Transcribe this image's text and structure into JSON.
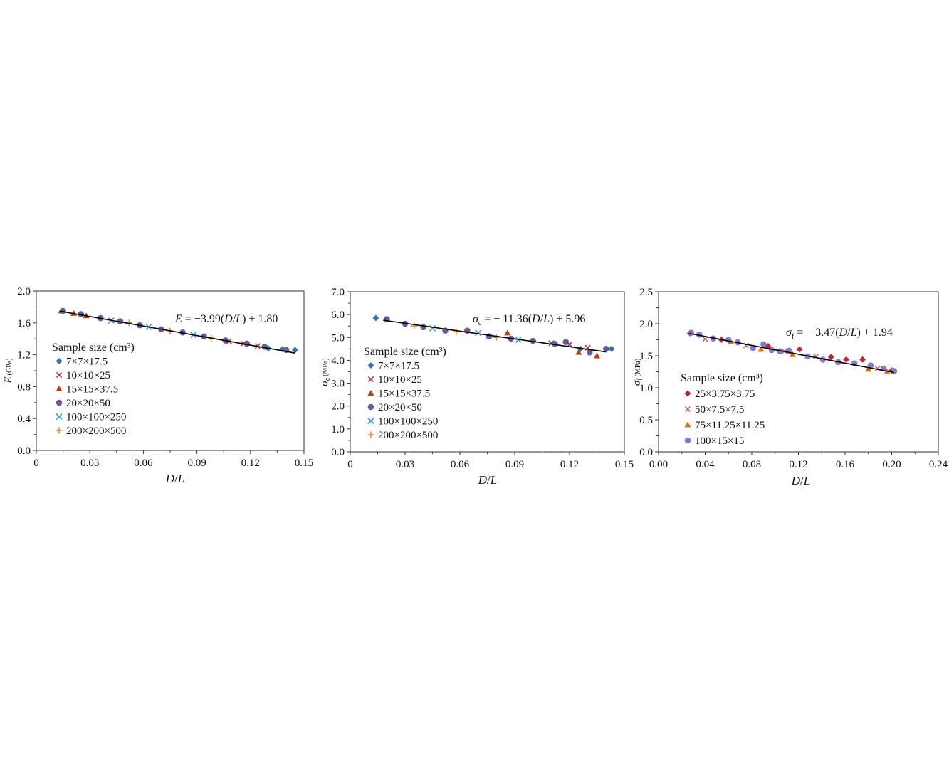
{
  "chart_data": [
    {
      "type": "scatter",
      "x_axis": {
        "label_italic": "D",
        "label_sep": "/",
        "label_italic2": "L",
        "ticks": [
          "0",
          "0.03",
          "0.06",
          "0.09",
          "0.12",
          "0.15"
        ],
        "lim": [
          0,
          0.15
        ]
      },
      "y_axis": {
        "label_main": "E",
        "label_sub": "",
        "label_unit": "(GPa)",
        "ticks": [
          "0.0",
          "0.4",
          "0.8",
          "1.2",
          "1.6",
          "2.0"
        ],
        "lim": [
          0,
          2.0
        ]
      },
      "equation": {
        "lhs": "E",
        "lhs_sub": "",
        "text": " = −3.99(",
        "d": "D",
        "sep": "/",
        "l": "L",
        "tail": ") + 1.80"
      },
      "fit": {
        "slope": -3.99,
        "intercept": 1.8,
        "x_range": [
          0.013,
          0.145
        ]
      },
      "legend_title": "Sample size (cm³)",
      "legend_position": "left",
      "series": [
        {
          "name": "7×7×17.5",
          "marker": "diamond",
          "color": "#3d6fa7",
          "points": [
            [
              0.145,
              1.26
            ],
            [
              0.138,
              1.27
            ],
            [
              0.13,
              1.28
            ]
          ]
        },
        {
          "name": "10×10×25",
          "marker": "x",
          "color": "#a33a3a",
          "points": [
            [
              0.124,
              1.31
            ],
            [
              0.116,
              1.34
            ],
            [
              0.108,
              1.37
            ]
          ]
        },
        {
          "name": "15×15×37.5",
          "marker": "triangle",
          "color": "#a34a14",
          "points": [
            [
              0.014,
              1.75
            ],
            [
              0.021,
              1.72
            ],
            [
              0.028,
              1.69
            ]
          ]
        },
        {
          "name": "20×20×50",
          "marker": "circle",
          "color": "#6b5b95",
          "points": [
            [
              0.015,
              1.75
            ],
            [
              0.025,
              1.71
            ],
            [
              0.036,
              1.66
            ],
            [
              0.047,
              1.62
            ],
            [
              0.058,
              1.57
            ],
            [
              0.07,
              1.52
            ],
            [
              0.082,
              1.48
            ],
            [
              0.094,
              1.43
            ],
            [
              0.106,
              1.38
            ],
            [
              0.118,
              1.34
            ],
            [
              0.128,
              1.3
            ],
            [
              0.14,
              1.26
            ]
          ]
        },
        {
          "name": "100×100×250",
          "marker": "cross",
          "color": "#3aa0c4",
          "points": [
            [
              0.042,
              1.63
            ],
            [
              0.063,
              1.55
            ],
            [
              0.088,
              1.45
            ]
          ]
        },
        {
          "name": "200×200×500",
          "marker": "plus",
          "color": "#e08a3a",
          "points": [
            [
              0.052,
              1.6
            ],
            [
              0.075,
              1.5
            ],
            [
              0.098,
              1.41
            ]
          ]
        }
      ]
    },
    {
      "type": "scatter",
      "x_axis": {
        "label_italic": "D",
        "label_sep": "/",
        "label_italic2": "L",
        "ticks": [
          "0",
          "0.03",
          "0.06",
          "0.09",
          "0.12",
          "0.15"
        ],
        "lim": [
          0,
          0.15
        ]
      },
      "y_axis": {
        "label_main": "σ",
        "label_sub": "c",
        "label_unit": "(MPa)",
        "ticks": [
          "0.0",
          "1.0",
          "2.0",
          "3.0",
          "4.0",
          "5.0",
          "6.0",
          "7.0"
        ],
        "lim": [
          0,
          7.0
        ]
      },
      "equation": {
        "lhs": "σ",
        "lhs_sub": "c",
        "text": " = − 11.36(",
        "d": "D",
        "sep": "/",
        "l": "L",
        "tail": ") + 5.96"
      },
      "fit": {
        "slope": -11.36,
        "intercept": 5.96,
        "x_range": [
          0.018,
          0.14
        ]
      },
      "legend_title": "Sample size (cm³)",
      "legend_position": "left",
      "series": [
        {
          "name": "7×7×17.5",
          "marker": "diamond",
          "color": "#3d6fa7",
          "points": [
            [
              0.014,
              5.85
            ],
            [
              0.143,
              4.5
            ],
            [
              0.126,
              4.5
            ]
          ]
        },
        {
          "name": "10×10×25",
          "marker": "x",
          "color": "#a33a3a",
          "points": [
            [
              0.13,
              4.55
            ],
            [
              0.12,
              4.7
            ],
            [
              0.11,
              4.75
            ]
          ]
        },
        {
          "name": "15×15×37.5",
          "marker": "triangle",
          "color": "#a34a14",
          "points": [
            [
              0.086,
              5.2
            ],
            [
              0.125,
              4.35
            ],
            [
              0.135,
              4.2
            ]
          ]
        },
        {
          "name": "20×20×50",
          "marker": "circle",
          "color": "#6b5b95",
          "points": [
            [
              0.02,
              5.8
            ],
            [
              0.03,
              5.6
            ],
            [
              0.04,
              5.45
            ],
            [
              0.052,
              5.3
            ],
            [
              0.064,
              5.3
            ],
            [
              0.076,
              5.05
            ],
            [
              0.088,
              4.95
            ],
            [
              0.1,
              4.85
            ],
            [
              0.112,
              4.72
            ],
            [
              0.118,
              4.8
            ],
            [
              0.131,
              4.35
            ],
            [
              0.14,
              4.5
            ]
          ]
        },
        {
          "name": "100×100×250",
          "marker": "cross",
          "color": "#3aa0c4",
          "points": [
            [
              0.045,
              5.4
            ],
            [
              0.07,
              5.2
            ],
            [
              0.092,
              4.9
            ]
          ]
        },
        {
          "name": "200×200×500",
          "marker": "plus",
          "color": "#e08a3a",
          "points": [
            [
              0.035,
              5.5
            ],
            [
              0.058,
              5.25
            ],
            [
              0.08,
              5.0
            ]
          ]
        }
      ]
    },
    {
      "type": "scatter",
      "x_axis": {
        "label_italic": "D",
        "label_sep": "/",
        "label_italic2": "L",
        "ticks": [
          "0.00",
          "0.04",
          "0.08",
          "0.12",
          "0.16",
          "0.20",
          "0.24"
        ],
        "lim": [
          0,
          0.24
        ]
      },
      "y_axis": {
        "label_main": "σ",
        "label_sub": "f",
        "label_unit": "(MPa)",
        "ticks": [
          "0.0",
          "0.5",
          "1.0",
          "1.5",
          "2.0",
          "2.5"
        ],
        "lim": [
          0,
          2.5
        ]
      },
      "equation": {
        "lhs": "σ",
        "lhs_sub": "f",
        "text": " = − 3.47(",
        "d": "D",
        "sep": "/",
        "l": "L",
        "tail": ") + 1.94"
      },
      "fit": {
        "slope": -3.47,
        "intercept": 1.94,
        "x_range": [
          0.026,
          0.202
        ]
      },
      "legend_title": "Sample size (cm³)",
      "legend_position": "left",
      "series": [
        {
          "name": "25×3.75×3.75",
          "marker": "diamond",
          "color": "#b3283f",
          "points": [
            [
              0.027,
              1.85
            ],
            [
              0.054,
              1.75
            ],
            [
              0.094,
              1.65
            ],
            [
              0.121,
              1.6
            ],
            [
              0.148,
              1.48
            ],
            [
              0.161,
              1.44
            ],
            [
              0.175,
              1.44
            ],
            [
              0.2,
              1.27
            ]
          ]
        },
        {
          "name": "50×7.5×7.5",
          "marker": "x",
          "color": "#c06a7a",
          "points": [
            [
              0.04,
              1.76
            ],
            [
              0.075,
              1.66
            ],
            [
              0.108,
              1.57
            ],
            [
              0.135,
              1.49
            ],
            [
              0.188,
              1.3
            ]
          ]
        },
        {
          "name": "75×11.25×11.25",
          "marker": "triangle",
          "color": "#d0730f",
          "points": [
            [
              0.062,
              1.72
            ],
            [
              0.088,
              1.6
            ],
            [
              0.115,
              1.52
            ],
            [
              0.155,
              1.41
            ],
            [
              0.18,
              1.29
            ],
            [
              0.196,
              1.25
            ]
          ]
        },
        {
          "name": "100×15×15",
          "marker": "circle",
          "color": "#8a7bbf",
          "points": [
            [
              0.028,
              1.86
            ],
            [
              0.035,
              1.83
            ],
            [
              0.047,
              1.77
            ],
            [
              0.06,
              1.75
            ],
            [
              0.068,
              1.71
            ],
            [
              0.081,
              1.62
            ],
            [
              0.09,
              1.68
            ],
            [
              0.097,
              1.59
            ],
            [
              0.104,
              1.57
            ],
            [
              0.112,
              1.58
            ],
            [
              0.128,
              1.49
            ],
            [
              0.141,
              1.44
            ],
            [
              0.154,
              1.4
            ],
            [
              0.168,
              1.38
            ],
            [
              0.182,
              1.35
            ],
            [
              0.193,
              1.3
            ],
            [
              0.202,
              1.26
            ]
          ]
        }
      ]
    }
  ]
}
